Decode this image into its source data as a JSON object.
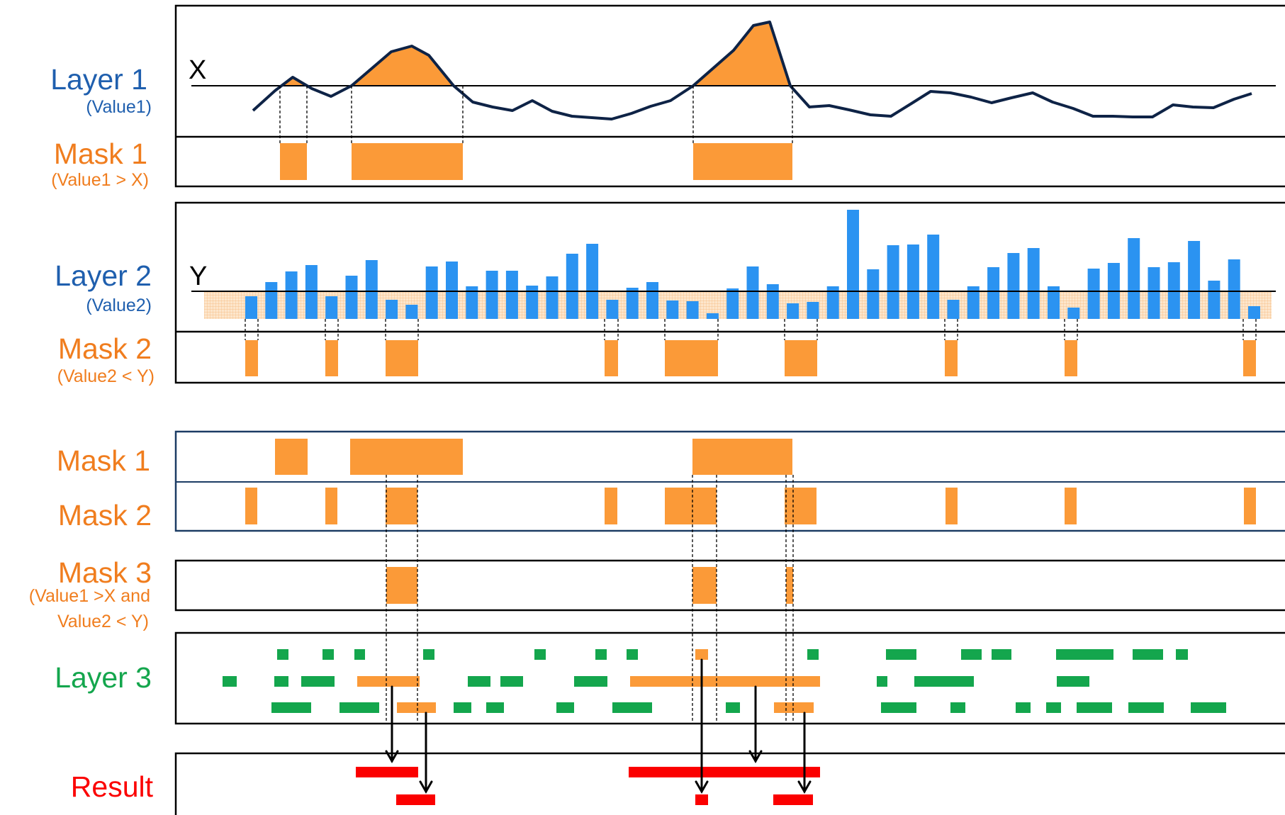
{
  "colors": {
    "blue_label": "#1f5fae",
    "orange": "#fb9a38",
    "orange_label": "#f07d1e",
    "bar_blue": "#2b93f1",
    "navy_line": "#0e2346",
    "green": "#14a64d",
    "red": "#fb0000",
    "band": "#fbd7b4",
    "frame": "#000000",
    "frame_blue": "#1c3c64"
  },
  "labels": {
    "layer1": "Layer 1",
    "layer1_sub": "(Value1)",
    "mask1": "Mask 1",
    "mask1_sub": "(Value1 > X)",
    "layer2": "Layer 2",
    "layer2_sub": "(Value2)",
    "mask2": "Mask 2",
    "mask2_sub": "(Value2 < Y)",
    "mask1_b": "Mask 1",
    "mask2_b": "Mask 2",
    "mask3": "Mask 3",
    "mask3_sub1": "(Value1 >X and",
    "mask3_sub2": "Value2 < Y)",
    "layer3": "Layer 3",
    "result": "Result",
    "threshold_x": "X",
    "threshold_y": "Y"
  }
}
